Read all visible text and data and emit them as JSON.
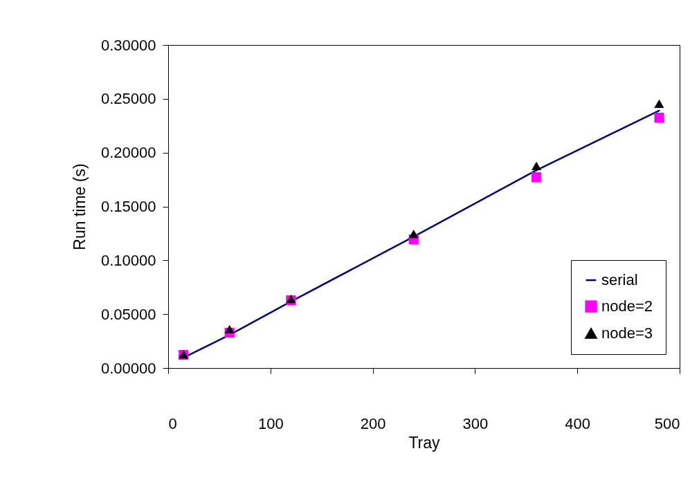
{
  "chart_data": {
    "type": "line",
    "xlabel": "Tray",
    "ylabel": "Run time (s)",
    "x": [
      15,
      60,
      120,
      240,
      360,
      480
    ],
    "series": [
      {
        "name": "serial",
        "type": "line",
        "color": "#000080",
        "marker": "none",
        "values": [
          0.0096,
          0.0308,
          0.0617,
          0.122,
          0.1837,
          0.239
        ]
      },
      {
        "name": "node=2",
        "type": "scatter",
        "color": "#ff00ff",
        "marker": "square",
        "values": [
          0.0122,
          0.0328,
          0.063,
          0.1195,
          0.1773,
          0.2325
        ]
      },
      {
        "name": "node=3",
        "type": "scatter",
        "color": "#000000",
        "marker": "triangle",
        "values": [
          0.0128,
          0.036,
          0.0642,
          0.1246,
          0.1876,
          0.2454
        ]
      }
    ],
    "xlim": [
      0,
      500
    ],
    "xticks": [
      0,
      100,
      200,
      300,
      400,
      500
    ],
    "ylim": [
      0,
      0.3
    ],
    "yticks": [
      {
        "value": 0,
        "label": "0.00000"
      },
      {
        "value": 0.05,
        "label": "0.05000"
      },
      {
        "value": 0.1,
        "label": "0.10000"
      },
      {
        "value": 0.15,
        "label": "0.15000"
      },
      {
        "value": 0.2,
        "label": "0.20000"
      },
      {
        "value": 0.25,
        "label": "0.25000"
      },
      {
        "value": 0.3,
        "label": "0.30000"
      }
    ],
    "grid": false,
    "legend": "bottom right"
  }
}
